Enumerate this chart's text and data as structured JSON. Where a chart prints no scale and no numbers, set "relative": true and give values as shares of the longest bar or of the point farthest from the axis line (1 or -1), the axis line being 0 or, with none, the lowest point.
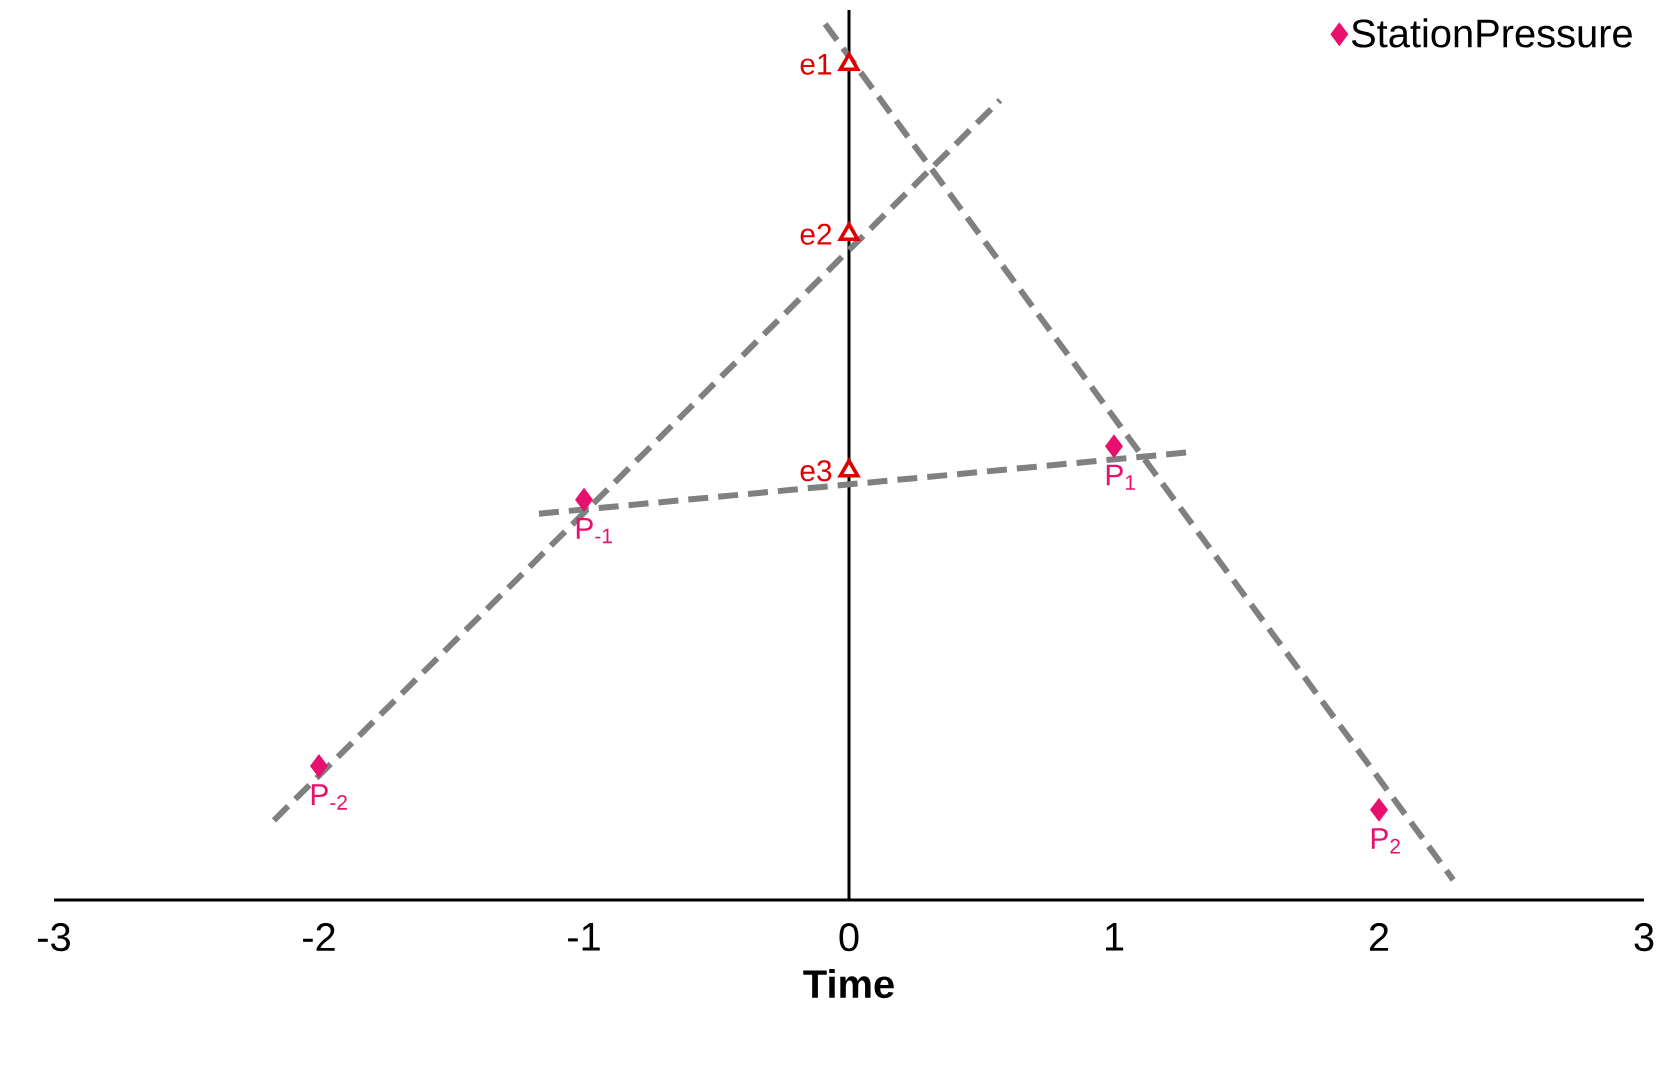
{
  "chart_data": {
    "type": "scatter",
    "relative": true,
    "xlabel": "Time",
    "xlim": [
      -3,
      3
    ],
    "xticks": [
      -3,
      -2,
      -1,
      0,
      1,
      2,
      3
    ],
    "tick_labels": "x",
    "legend": "top right",
    "series": [
      {
        "type": "line",
        "color": "#808080",
        "line_style": "dashed",
        "marker": "none",
        "x": [
          -2.17,
          0.57
        ],
        "values": [
          0.091,
          0.913
        ]
      },
      {
        "type": "line",
        "color": "#808080",
        "line_style": "dashed",
        "marker": "none",
        "x": [
          -0.09,
          2.28
        ],
        "values": [
          1,
          0.023
        ]
      },
      {
        "type": "line",
        "color": "#808080",
        "line_style": "dashed",
        "marker": "none",
        "x": [
          -1.17,
          1.28
        ],
        "values": [
          0.441,
          0.511
        ]
      },
      {
        "name": "StationPressure",
        "marker": "diamond",
        "color": "#e8106e",
        "x": [
          -2,
          -1,
          1,
          2
        ],
        "values": [
          0.153,
          0.457,
          0.518,
          0.103
        ]
      },
      {
        "marker": "triangle",
        "color": "#e00000",
        "x": [
          0,
          0,
          0
        ],
        "values": [
          0.954,
          0.76,
          0.49
        ]
      }
    ],
    "annotations": [
      {
        "text": "P$_{-2}$",
        "x": -2,
        "y": 0.153
      },
      {
        "text": "P$_{-1}$",
        "x": -1,
        "y": 0.457
      },
      {
        "text": "P$_{1}$",
        "x": 1,
        "y": 0.518
      },
      {
        "text": "P$_{2}$",
        "x": 2,
        "y": 0.103
      },
      {
        "text": "e1",
        "x": 0,
        "y": 0.954
      },
      {
        "text": "e2",
        "x": 0,
        "y": 0.76
      },
      {
        "text": "e3",
        "x": 0,
        "y": 0.49
      }
    ]
  }
}
